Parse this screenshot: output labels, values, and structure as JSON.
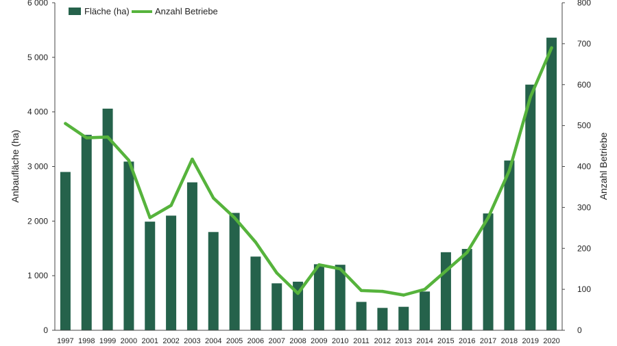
{
  "chart_data": {
    "type": "bar",
    "categories": [
      "1997",
      "1998",
      "1999",
      "2000",
      "2001",
      "2002",
      "2003",
      "2004",
      "2005",
      "2006",
      "2007",
      "2008",
      "2009",
      "2010",
      "2011",
      "2012",
      "2013",
      "2014",
      "2015",
      "2016",
      "2017",
      "2018",
      "2019",
      "2020"
    ],
    "series": [
      {
        "name": "Fläche (ha)",
        "type": "bar",
        "axis": "left",
        "color": "#25624b",
        "values": [
          2900,
          3580,
          4060,
          3090,
          1990,
          2100,
          2710,
          1800,
          2150,
          1350,
          860,
          890,
          1210,
          1200,
          520,
          410,
          430,
          710,
          1430,
          1490,
          2140,
          3110,
          4500,
          5360
        ]
      },
      {
        "name": "Anzahl Betriebe",
        "type": "line",
        "axis": "right",
        "color": "#56b33c",
        "values": [
          505,
          470,
          472,
          415,
          275,
          305,
          418,
          323,
          275,
          215,
          140,
          90,
          160,
          150,
          97,
          95,
          86,
          100,
          145,
          190,
          275,
          390,
          570,
          690
        ]
      }
    ],
    "xlabel": "",
    "ylabel": "Anbaufläche (ha)",
    "y2label": "Anzahl Betriebe",
    "ylim": [
      0,
      6000
    ],
    "y2lim": [
      0,
      800
    ],
    "yticks": [
      "0",
      "1 000",
      "2 000",
      "3 000",
      "4 000",
      "5 000",
      "6 000"
    ],
    "yticks_values": [
      0,
      1000,
      2000,
      3000,
      4000,
      5000,
      6000
    ],
    "y2ticks": [
      "0",
      "100",
      "200",
      "300",
      "400",
      "500",
      "600",
      "700",
      "800"
    ],
    "y2ticks_values": [
      0,
      100,
      200,
      300,
      400,
      500,
      600,
      700,
      800
    ],
    "legend": "top-left",
    "grid": false
  }
}
